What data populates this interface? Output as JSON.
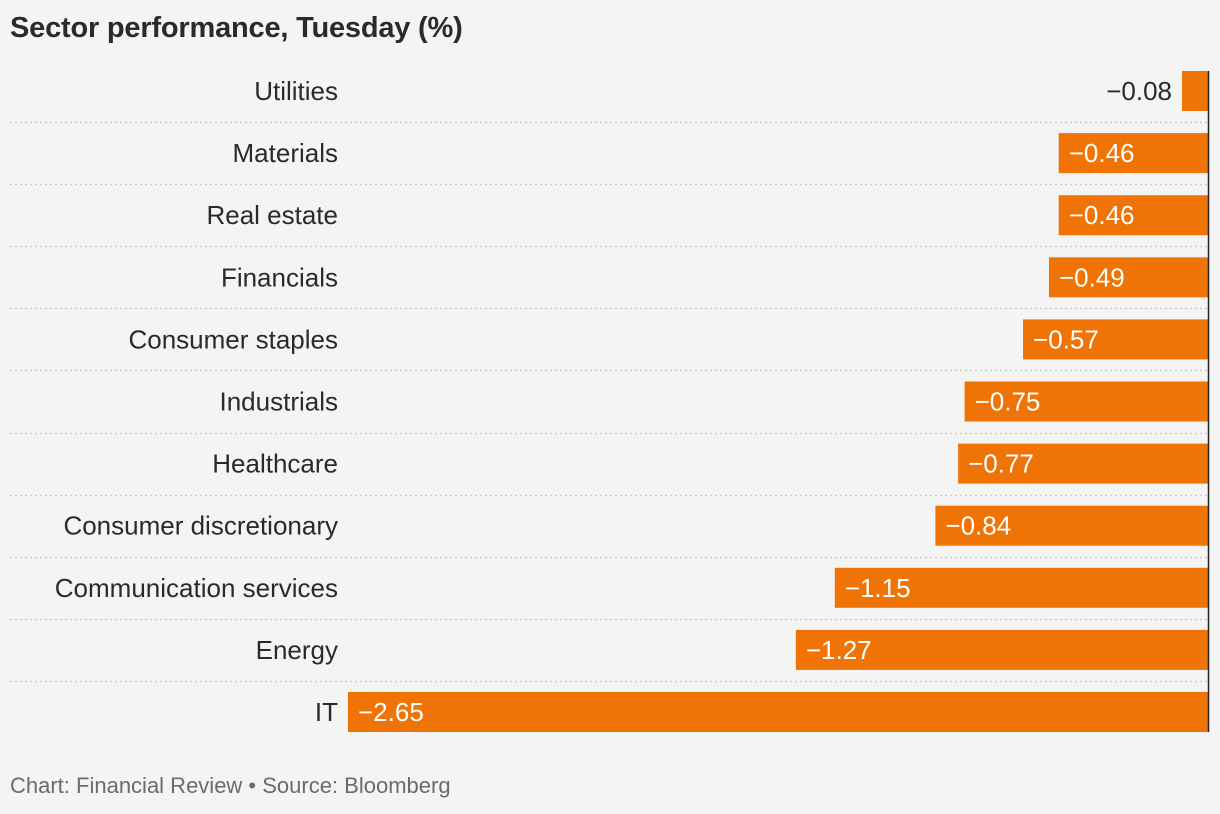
{
  "title": "Sector performance, Tuesday (%)",
  "footer": "Chart: Financial Review • Source: Bloomberg",
  "colors": {
    "bar": "#f07306",
    "label_inside": "#ffffff",
    "label_outside": "#2a2a2a",
    "gridline": "#c8c8c8",
    "axis": "#222222"
  },
  "chart_data": {
    "type": "bar",
    "orientation": "horizontal",
    "categories": [
      "Utilities",
      "Materials",
      "Real estate",
      "Financials",
      "Consumer staples",
      "Industrials",
      "Healthcare",
      "Consumer discretionary",
      "Communication services",
      "Energy",
      "IT"
    ],
    "values": [
      -0.08,
      -0.46,
      -0.46,
      -0.49,
      -0.57,
      -0.75,
      -0.77,
      -0.84,
      -1.15,
      -1.27,
      -2.65
    ],
    "value_labels": [
      "−0.08",
      "−0.46",
      "−0.46",
      "−0.49",
      "−0.57",
      "−0.75",
      "−0.77",
      "−0.84",
      "−1.15",
      "−1.27",
      "−2.65"
    ],
    "xlim": [
      -2.65,
      0
    ],
    "grid": true,
    "legend": "none"
  }
}
